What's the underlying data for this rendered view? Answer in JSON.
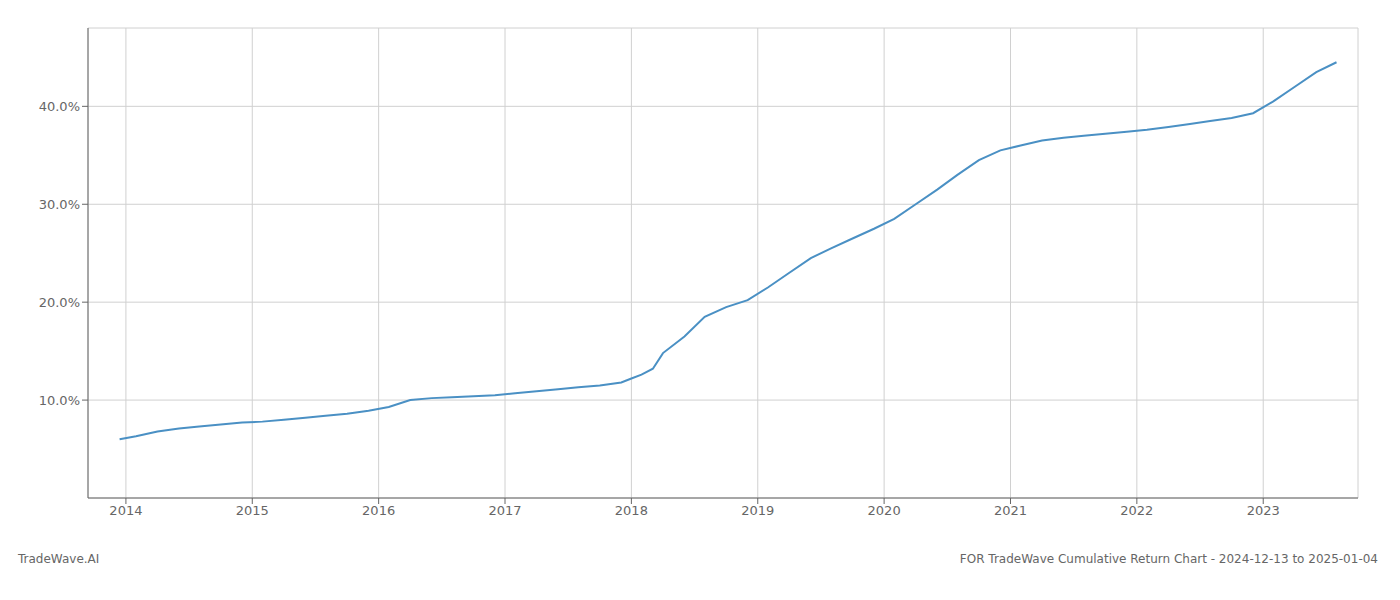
{
  "chart_data": {
    "type": "line",
    "annotations": [
      "TradeWave.AI",
      "FOR TradeWave Cumulative Return Chart - 2024-12-13 to 2025-01-04"
    ],
    "x": [
      2013.95,
      2014.08,
      2014.25,
      2014.42,
      2014.58,
      2014.75,
      2014.92,
      2015.08,
      2015.25,
      2015.42,
      2015.58,
      2015.75,
      2015.92,
      2016.08,
      2016.25,
      2016.42,
      2016.58,
      2016.75,
      2016.92,
      2017.08,
      2017.25,
      2017.42,
      2017.58,
      2017.75,
      2017.92,
      2018.0,
      2018.08,
      2018.17,
      2018.25,
      2018.42,
      2018.58,
      2018.75,
      2018.92,
      2019.08,
      2019.25,
      2019.42,
      2019.58,
      2019.75,
      2019.92,
      2020.08,
      2020.25,
      2020.42,
      2020.58,
      2020.75,
      2020.92,
      2021.08,
      2021.25,
      2021.42,
      2021.58,
      2021.75,
      2021.92,
      2022.08,
      2022.25,
      2022.42,
      2022.58,
      2022.75,
      2022.92,
      2023.08,
      2023.25,
      2023.42,
      2023.58
    ],
    "values": [
      6.0,
      6.3,
      6.8,
      7.1,
      7.3,
      7.5,
      7.7,
      7.8,
      8.0,
      8.2,
      8.4,
      8.6,
      8.9,
      9.3,
      10.0,
      10.2,
      10.3,
      10.4,
      10.5,
      10.7,
      10.9,
      11.1,
      11.3,
      11.5,
      11.8,
      12.2,
      12.6,
      13.2,
      14.8,
      16.5,
      18.5,
      19.5,
      20.2,
      21.5,
      23.0,
      24.5,
      25.5,
      26.5,
      27.5,
      28.5,
      30.0,
      31.5,
      33.0,
      34.5,
      35.5,
      36.0,
      36.5,
      36.8,
      37.0,
      37.2,
      37.4,
      37.6,
      37.9,
      38.2,
      38.5,
      38.8,
      39.3,
      40.5,
      42.0,
      43.5,
      44.5
    ],
    "color": "#4a90c4",
    "xlim": [
      2013.7,
      2023.75
    ],
    "xticks": [
      2014,
      2015,
      2016,
      2017,
      2018,
      2019,
      2020,
      2021,
      2022,
      2023
    ],
    "ylim": [
      0,
      48
    ],
    "yticks": [
      {
        "value": 10.0,
        "label": "10.0%"
      },
      {
        "value": 20.0,
        "label": "20.0%"
      },
      {
        "value": 30.0,
        "label": "30.0%"
      },
      {
        "value": 40.0,
        "label": "40.0%"
      }
    ],
    "grid": true
  }
}
